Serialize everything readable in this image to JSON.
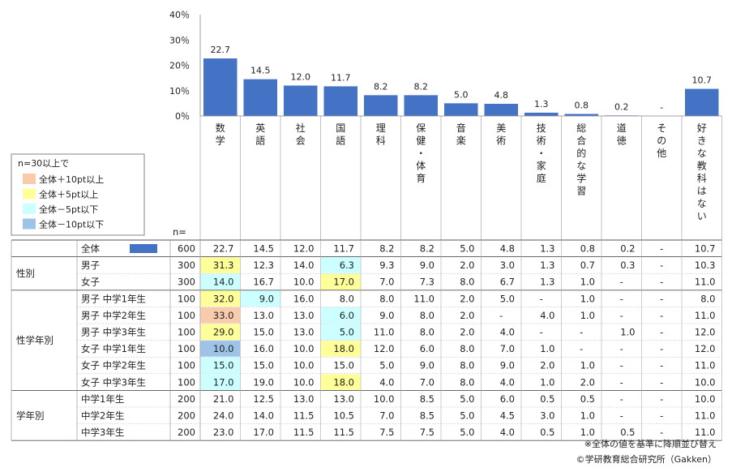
{
  "chart_data": {
    "type": "bar",
    "ylim": [
      0,
      40
    ],
    "y_ticks": [
      "40％",
      "30％",
      "20％",
      "10％",
      "0％"
    ],
    "categories": [
      {
        "label": "数学",
        "value": 22.7,
        "value_label": "22.7"
      },
      {
        "label": "英語",
        "value": 14.5,
        "value_label": "14.5"
      },
      {
        "label": "社会",
        "value": 12.0,
        "value_label": "12.0"
      },
      {
        "label": "国語",
        "value": 11.7,
        "value_label": "11.7"
      },
      {
        "label": "理科",
        "value": 8.2,
        "value_label": "8.2"
      },
      {
        "label": "保健・体育",
        "value": 8.2,
        "value_label": "8.2"
      },
      {
        "label": "音楽",
        "value": 5.0,
        "value_label": "5.0"
      },
      {
        "label": "美術",
        "value": 4.8,
        "value_label": "4.8"
      },
      {
        "label": "技術・家庭",
        "value": 1.3,
        "value_label": "1.3"
      },
      {
        "label": "総合的な学習",
        "value": 0.8,
        "value_label": "0.8"
      },
      {
        "label": "道徳",
        "value": 0.2,
        "value_label": "0.2"
      },
      {
        "label": "その他",
        "value": 0,
        "value_label": "-"
      },
      {
        "label": "好きな教科はない",
        "value": 10.7,
        "value_label": "10.7"
      }
    ],
    "bar_color": "#4472C4",
    "n_header": "n=",
    "legend": {
      "title": "n=30以上で",
      "items": [
        {
          "label": "全体＋10pt以上",
          "color": "#F8CBAD"
        },
        {
          "label": "全体＋5pt以上",
          "color": "#FFFF99"
        },
        {
          "label": "全体－5pt以下",
          "color": "#CCFFFF"
        },
        {
          "label": "全体－10pt以下",
          "color": "#9DC3E6"
        }
      ]
    },
    "table": {
      "groups": [
        {
          "label": "",
          "rows": [
            {
              "label": "全体",
              "n": "600",
              "values": [
                "22.7",
                "14.5",
                "12.0",
                "11.7",
                "8.2",
                "8.2",
                "5.0",
                "4.8",
                "1.3",
                "0.8",
                "0.2",
                "-",
                "10.7"
              ],
              "hl": {}
            }
          ]
        },
        {
          "label": "性別",
          "rows": [
            {
              "label": "男子",
              "n": "300",
              "values": [
                "31.3",
                "12.3",
                "14.0",
                "6.3",
                "9.3",
                "9.0",
                "2.0",
                "3.0",
                "1.3",
                "0.7",
                "0.3",
                "-",
                "10.3"
              ],
              "hl": {
                "0": "#FFFF99",
                "3": "#CCFFFF"
              }
            },
            {
              "label": "女子",
              "n": "300",
              "values": [
                "14.0",
                "16.7",
                "10.0",
                "17.0",
                "7.0",
                "7.3",
                "8.0",
                "6.7",
                "1.3",
                "1.0",
                "-",
                "-",
                "11.0"
              ],
              "hl": {
                "0": "#CCFFFF",
                "3": "#FFFF99"
              }
            }
          ]
        },
        {
          "label": "性学年別",
          "rows": [
            {
              "label": "男子 中学1年生",
              "n": "100",
              "values": [
                "32.0",
                "9.0",
                "16.0",
                "8.0",
                "8.0",
                "11.0",
                "2.0",
                "5.0",
                "-",
                "1.0",
                "-",
                "-",
                "8.0"
              ],
              "hl": {
                "0": "#FFFF99",
                "1": "#CCFFFF"
              }
            },
            {
              "label": "男子 中学2年生",
              "n": "100",
              "values": [
                "33.0",
                "13.0",
                "13.0",
                "6.0",
                "9.0",
                "8.0",
                "2.0",
                "-",
                "4.0",
                "1.0",
                "-",
                "-",
                "11.0"
              ],
              "hl": {
                "0": "#F8CBAD",
                "3": "#CCFFFF"
              }
            },
            {
              "label": "男子 中学3年生",
              "n": "100",
              "values": [
                "29.0",
                "15.0",
                "13.0",
                "5.0",
                "11.0",
                "8.0",
                "2.0",
                "4.0",
                "-",
                "-",
                "1.0",
                "-",
                "12.0"
              ],
              "hl": {
                "0": "#FFFF99",
                "3": "#CCFFFF"
              }
            },
            {
              "label": "女子 中学1年生",
              "n": "100",
              "values": [
                "10.0",
                "16.0",
                "10.0",
                "18.0",
                "12.0",
                "6.0",
                "8.0",
                "7.0",
                "1.0",
                "-",
                "-",
                "-",
                "12.0"
              ],
              "hl": {
                "0": "#9DC3E6",
                "3": "#FFFF99"
              }
            },
            {
              "label": "女子 中学2年生",
              "n": "100",
              "values": [
                "15.0",
                "15.0",
                "10.0",
                "15.0",
                "5.0",
                "9.0",
                "8.0",
                "9.0",
                "2.0",
                "1.0",
                "-",
                "-",
                "11.0"
              ],
              "hl": {
                "0": "#CCFFFF"
              }
            },
            {
              "label": "女子 中学3年生",
              "n": "100",
              "values": [
                "17.0",
                "19.0",
                "10.0",
                "18.0",
                "4.0",
                "7.0",
                "8.0",
                "4.0",
                "1.0",
                "2.0",
                "-",
                "-",
                "10.0"
              ],
              "hl": {
                "0": "#CCFFFF",
                "3": "#FFFF99"
              }
            }
          ]
        },
        {
          "label": "学年別",
          "rows": [
            {
              "label": "中学1年生",
              "n": "200",
              "values": [
                "21.0",
                "12.5",
                "13.0",
                "13.0",
                "10.0",
                "8.5",
                "5.0",
                "6.0",
                "0.5",
                "0.5",
                "-",
                "-",
                "10.0"
              ],
              "hl": {}
            },
            {
              "label": "中学2年生",
              "n": "200",
              "values": [
                "24.0",
                "14.0",
                "11.5",
                "10.5",
                "7.0",
                "8.5",
                "5.0",
                "4.5",
                "3.0",
                "1.0",
                "-",
                "-",
                "11.0"
              ],
              "hl": {}
            },
            {
              "label": "中学3年生",
              "n": "200",
              "values": [
                "23.0",
                "17.0",
                "11.5",
                "11.5",
                "7.5",
                "7.5",
                "5.0",
                "4.0",
                "0.5",
                "1.0",
                "0.5",
                "-",
                "11.0"
              ],
              "hl": {}
            }
          ]
        }
      ]
    },
    "notes": [
      "※全体の値を基準に降順並び替え",
      "©学研教育総合研究所（Gakken）"
    ]
  }
}
